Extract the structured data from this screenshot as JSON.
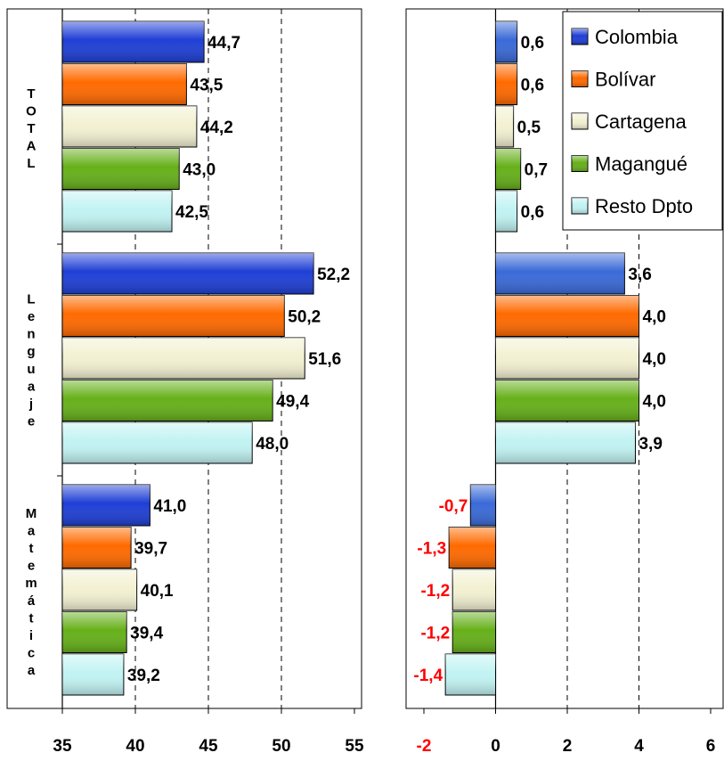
{
  "chart_data": [
    {
      "type": "bar",
      "orientation": "horizontal",
      "groups": [
        "TOTAL",
        "Lenguaje",
        "Matemática"
      ],
      "series": [
        {
          "name": "Colombia",
          "color": "#1f3fd6",
          "values": [
            44.7,
            52.2,
            41.0
          ],
          "labels": [
            "44,7",
            "52,2",
            "41,0"
          ]
        },
        {
          "name": "Bolívar",
          "color": "#ff6a00",
          "values": [
            43.5,
            50.2,
            39.7
          ],
          "labels": [
            "43,5",
            "50,2",
            "39,7"
          ]
        },
        {
          "name": "Cartagena",
          "color": "#f3f1d2",
          "values": [
            44.2,
            51.6,
            40.1
          ],
          "labels": [
            "44,2",
            "51,6",
            "40,1"
          ]
        },
        {
          "name": "Magangué",
          "color": "#66b01a",
          "values": [
            43.0,
            49.4,
            39.4
          ],
          "labels": [
            "43,0",
            "49,4",
            "39,4"
          ]
        },
        {
          "name": "Resto Dpto",
          "color": "#c2f3f3",
          "values": [
            42.5,
            48.0,
            39.2
          ],
          "labels": [
            "42,5",
            "48,0",
            "39,2"
          ]
        }
      ],
      "xlim": [
        35,
        55
      ],
      "xticks": [
        35,
        40,
        45,
        50,
        55
      ],
      "xtick_labels": [
        "35",
        "40",
        "45",
        "50",
        "55"
      ],
      "grid": "vertical-dashed"
    },
    {
      "type": "bar",
      "orientation": "horizontal",
      "groups": [
        "TOTAL",
        "Lenguaje",
        "Matemática"
      ],
      "series": [
        {
          "name": "Colombia",
          "color": "#3a6ad8",
          "values": [
            0.6,
            3.6,
            -0.7
          ],
          "labels": [
            "0,6",
            "3,6",
            "-0,7"
          ]
        },
        {
          "name": "Bolívar",
          "color": "#ff6a00",
          "values": [
            0.6,
            4.0,
            -1.3
          ],
          "labels": [
            "0,6",
            "4,0",
            "-1,3"
          ]
        },
        {
          "name": "Cartagena",
          "color": "#f3f1d2",
          "values": [
            0.5,
            4.0,
            -1.2
          ],
          "labels": [
            "0,5",
            "4,0",
            "-1,2"
          ]
        },
        {
          "name": "Magangué",
          "color": "#66b01a",
          "values": [
            0.7,
            4.0,
            -1.2
          ],
          "labels": [
            "0,7",
            "4,0",
            "-1,2"
          ]
        },
        {
          "name": "Resto Dpto",
          "color": "#c2f3f3",
          "values": [
            0.6,
            3.9,
            -1.4
          ],
          "labels": [
            "0,6",
            "3,9",
            "-1,4"
          ]
        }
      ],
      "xlim": [
        -2,
        6
      ],
      "xticks": [
        -2,
        0,
        2,
        4,
        6
      ],
      "xtick_labels": [
        "-2",
        "0",
        "2",
        "4",
        "6"
      ],
      "negative_label_color": "#ff0000",
      "grid": "vertical-dashed",
      "legend": {
        "placement": "top-right",
        "entries": [
          "Colombia",
          "Bolívar",
          "Cartagena",
          "Magangué",
          "Resto Dpto"
        ],
        "colors": [
          "#1f3fd6",
          "#ff6a00",
          "#f3f1d2",
          "#66b01a",
          "#c2f3f3"
        ]
      }
    }
  ]
}
